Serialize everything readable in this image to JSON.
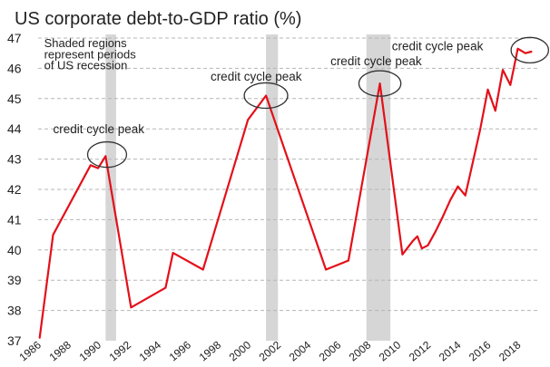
{
  "chart_data": {
    "type": "line",
    "title": "US corporate debt-to-GDP ratio (%)",
    "xlabel": "",
    "ylabel": "",
    "xlim": [
      1986,
      2019.3
    ],
    "ylim": [
      37,
      47
    ],
    "y_ticks": [
      37,
      38,
      39,
      40,
      41,
      42,
      43,
      44,
      45,
      46,
      47
    ],
    "x_ticks": [
      1986,
      1988,
      1990,
      1992,
      1994,
      1996,
      1998,
      2000,
      2002,
      2004,
      2006,
      2008,
      2010,
      2012,
      2014,
      2016,
      2018
    ],
    "x_tick_labels": [
      "1986",
      "1988",
      "1990",
      "1992",
      "1994",
      "1996",
      "1998",
      "2000",
      "2002",
      "2004",
      "2006",
      "2008",
      "2010",
      "2012",
      "2014",
      "2016",
      "2018"
    ],
    "grid": "horizontal dashed",
    "series": [
      {
        "name": "US corporate debt-to-GDP ratio",
        "color": "#e3101a",
        "x": [
          1986.1,
          1987.0,
          1989.5,
          1990.0,
          1990.5,
          1992.2,
          1994.5,
          1995.0,
          1997.0,
          2000.0,
          2001.2,
          2005.2,
          2006.7,
          2008.8,
          2010.3,
          2011.0,
          2011.3,
          2011.6,
          2012.0,
          2012.5,
          2013.0,
          2013.5,
          2014.0,
          2014.5,
          2015.0,
          2015.5,
          2016.0,
          2016.5,
          2017.0,
          2017.5,
          2018.0,
          2018.5,
          2018.9
        ],
        "values": [
          37.1,
          40.5,
          42.8,
          42.7,
          43.1,
          38.1,
          38.75,
          39.9,
          39.35,
          44.3,
          45.1,
          39.35,
          39.65,
          45.5,
          39.85,
          40.3,
          40.45,
          40.05,
          40.15,
          40.6,
          41.1,
          41.65,
          42.1,
          41.8,
          42.9,
          44.0,
          45.3,
          44.6,
          45.95,
          45.45,
          46.65,
          46.5,
          46.55
        ]
      }
    ],
    "recessions": [
      {
        "start": 1990.5,
        "end": 1991.2
      },
      {
        "start": 2001.2,
        "end": 2002.0
      },
      {
        "start": 2007.9,
        "end": 2009.5
      }
    ],
    "annotations": [
      {
        "text": "Shaded regions",
        "x": 1986.4,
        "y": 46.7
      },
      {
        "text": "represent periods",
        "x": 1986.4,
        "y": 46.33
      },
      {
        "text": "of US recession",
        "x": 1986.4,
        "y": 45.96
      },
      {
        "text": "credit cycle peak",
        "x": 1987.0,
        "y": 43.85
      },
      {
        "text": "credit cycle peak",
        "x": 1997.5,
        "y": 45.6
      },
      {
        "text": "credit cycle peak",
        "x": 2005.5,
        "y": 46.1
      },
      {
        "text": "credit cycle peak",
        "x": 2009.6,
        "y": 46.6
      }
    ],
    "peak_circles": [
      {
        "x": 1990.6,
        "y": 43.15,
        "rx_years": 1.3,
        "ry_pct": 0.42
      },
      {
        "x": 2001.2,
        "y": 45.1,
        "rx_years": 1.45,
        "ry_pct": 0.42
      },
      {
        "x": 2008.8,
        "y": 45.5,
        "rx_years": 1.4,
        "ry_pct": 0.42
      },
      {
        "x": 2018.8,
        "y": 46.6,
        "rx_years": 1.25,
        "ry_pct": 0.42
      }
    ]
  },
  "colors": {
    "line": "#e3101a",
    "recession": "#d6d6d6",
    "grid": "#b5b5b5",
    "circle": "#333333"
  }
}
